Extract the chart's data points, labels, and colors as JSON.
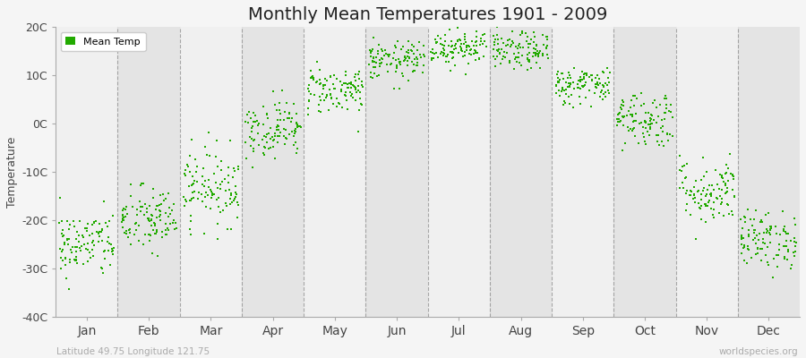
{
  "title": "Monthly Mean Temperatures 1901 - 2009",
  "ylabel": "Temperature",
  "xlabel_months": [
    "Jan",
    "Feb",
    "Mar",
    "Apr",
    "May",
    "Jun",
    "Jul",
    "Aug",
    "Sep",
    "Oct",
    "Nov",
    "Dec"
  ],
  "ylim": [
    -40,
    20
  ],
  "yticks": [
    -40,
    -30,
    -20,
    -10,
    0,
    10,
    20
  ],
  "ytick_labels": [
    "-40C",
    "-30C",
    "-20C",
    "-10C",
    "0C",
    "10C",
    "20C"
  ],
  "dot_color": "#22aa00",
  "dot_size": 3,
  "background_color": "#f5f5f5",
  "band_colors": [
    "#f0f0f0",
    "#e4e4e4"
  ],
  "dashed_line_color": "#888888",
  "legend_label": "Mean Temp",
  "bottom_left_text": "Latitude 49.75 Longitude 121.75",
  "bottom_right_text": "worldspecies.org",
  "monthly_means": [
    -25,
    -20,
    -13,
    -1,
    7,
    13,
    16,
    15,
    8,
    1,
    -14,
    -24
  ],
  "monthly_stds": [
    3.5,
    3.5,
    4,
    3,
    2.5,
    2,
    2,
    2,
    2,
    3,
    3.5,
    3
  ],
  "n_years": 109,
  "seed": 42,
  "title_fontsize": 14,
  "axis_fontsize": 9,
  "ylabel_fontsize": 9
}
